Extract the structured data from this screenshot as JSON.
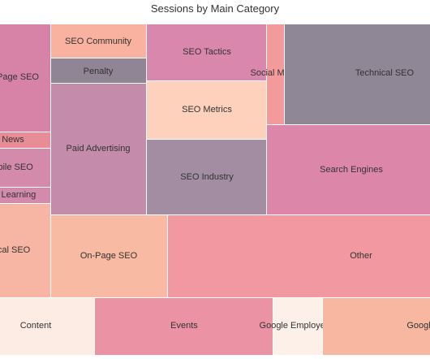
{
  "chart_data": {
    "type": "treemap",
    "title": "Sessions by Main Category",
    "tiles": [
      {
        "name": "On-Page SEO",
        "label": "Page SEO",
        "value": 3220,
        "color": "#d783a8"
      },
      {
        "name": "News",
        "label": "News",
        "value": 440,
        "color": "#e88d96"
      },
      {
        "name": "Mobile SEO",
        "label": "obile SEO",
        "value": 1060,
        "color": "#d48aaa"
      },
      {
        "name": "Machine Learning",
        "label": "ine Learning",
        "value": 420,
        "color": "#d48aaa"
      },
      {
        "name": "Local SEO",
        "label": "ocal SEO",
        "value": 2950,
        "color": "#f7b6a3"
      },
      {
        "name": "SEO Community",
        "label": "SEO Community",
        "value": 1390,
        "color": "#f8b29f"
      },
      {
        "name": "Penalty",
        "label": "Penalty",
        "value": 1070,
        "color": "#8f8595"
      },
      {
        "name": "Paid Advertising",
        "label": "Paid Advertising",
        "value": 7030,
        "color": "#c58bab"
      },
      {
        "name": "SEO Tactics",
        "label": "SEO Tactics",
        "value": 3470,
        "color": "#d987ac"
      },
      {
        "name": "SEO Metrics",
        "label": "SEO Metrics",
        "value": 3520,
        "color": "#fdd1bc"
      },
      {
        "name": "SEO Industry",
        "label": "SEO Industry",
        "value": 4510,
        "color": "#a38da2"
      },
      {
        "name": "On-Page SEO",
        "label": "On-Page SEO",
        "value": 5350,
        "color": "#f8baa2"
      },
      {
        "name": "Social Media",
        "label": "Social Media",
        "value": 580,
        "color": "#f59a9b"
      },
      {
        "name": "Technical SEO",
        "label": "Technical SEO",
        "value": 7450,
        "color": "#8f8696"
      },
      {
        "name": "Search Engines",
        "label": "Search Engines",
        "value": 8090,
        "color": "#dc87a9"
      },
      {
        "name": "Other",
        "label": "Other",
        "value": 12300,
        "color": "#f198a0"
      },
      {
        "name": "Content",
        "label": "Content",
        "value": 5450,
        "color": "#fcece4"
      },
      {
        "name": "Events",
        "label": "Events",
        "value": 8130,
        "color": "#eb93a4"
      },
      {
        "name": "Google Employees",
        "label": "Google Employees",
        "value": 2300,
        "color": "#fdf0e9"
      },
      {
        "name": "Google",
        "label": "Googl",
        "value": 5680,
        "color": "#f8b7a0"
      }
    ]
  }
}
